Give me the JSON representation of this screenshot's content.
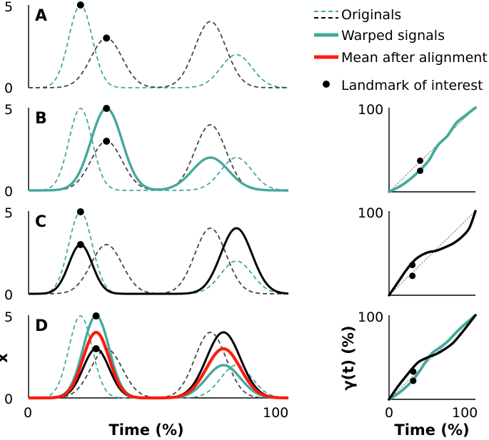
{
  "colors": {
    "teal": "#45a89d",
    "black": "#000000",
    "red": "#ff1a0d",
    "gray": "#444444",
    "ref": "#555555"
  },
  "legend": {
    "items": [
      {
        "label": "Originals",
        "kind": "dashed"
      },
      {
        "label": "Warped signals",
        "kind": "solid-teal"
      },
      {
        "label": "Mean after alignment",
        "kind": "solid-red"
      },
      {
        "label": "Landmark of interest",
        "kind": "dot"
      }
    ]
  },
  "chart_data": [
    {
      "panel": "A",
      "type": "line",
      "xlim": [
        0,
        100
      ],
      "ylim": [
        0,
        5
      ],
      "yticks": [
        "0",
        "5"
      ],
      "series": [
        {
          "name": "Original 1",
          "style": "dashed-teal",
          "peaks": [
            [
              20,
              5,
              4.5
            ],
            [
              80,
              2,
              6
            ]
          ]
        },
        {
          "name": "Original 2",
          "style": "dashed-black",
          "peaks": [
            [
              30,
              3,
              6
            ],
            [
              70,
              4,
              6
            ]
          ]
        }
      ],
      "landmarks": [
        [
          20,
          5
        ],
        [
          30,
          3
        ]
      ]
    },
    {
      "panel": "B",
      "type": "line",
      "xlim": [
        0,
        100
      ],
      "ylim": [
        0,
        5
      ],
      "yticks": [
        "0",
        "5"
      ],
      "series": [
        {
          "name": "Original 1",
          "style": "dashed-teal",
          "peaks": [
            [
              20,
              5,
              4.5
            ],
            [
              80,
              2,
              6
            ]
          ]
        },
        {
          "name": "Original 2",
          "style": "dashed-black",
          "peaks": [
            [
              30,
              3,
              6
            ],
            [
              70,
              4,
              6
            ]
          ]
        },
        {
          "name": "Warped signal 1",
          "style": "solid-teal",
          "peaks": [
            [
              30,
              5,
              6
            ],
            [
              70,
              2,
              7
            ]
          ]
        }
      ],
      "landmarks": [
        [
          30,
          5
        ],
        [
          30,
          3
        ]
      ]
    },
    {
      "panel": "C",
      "type": "line",
      "xlim": [
        0,
        100
      ],
      "ylim": [
        0,
        5
      ],
      "yticks": [
        "0",
        "5"
      ],
      "series": [
        {
          "name": "Original 1",
          "style": "dashed-teal",
          "peaks": [
            [
              20,
              5,
              4.5
            ],
            [
              80,
              2,
              6
            ]
          ]
        },
        {
          "name": "Original 2",
          "style": "dashed-black",
          "peaks": [
            [
              30,
              3,
              6
            ],
            [
              70,
              4,
              6
            ]
          ]
        },
        {
          "name": "Warped signal 2",
          "style": "solid-black",
          "peaks": [
            [
              20,
              3,
              4.5
            ],
            [
              80,
              4,
              6
            ]
          ]
        }
      ],
      "landmarks": [
        [
          20,
          5
        ],
        [
          20,
          3
        ]
      ]
    },
    {
      "panel": "D",
      "type": "line",
      "xlim": [
        0,
        100
      ],
      "ylim": [
        0,
        5
      ],
      "xticks": [
        "0",
        "100"
      ],
      "yticks": [
        "0",
        "5"
      ],
      "xlabel": "Time (%)",
      "ylabel": "x",
      "series": [
        {
          "name": "Original 1",
          "style": "dashed-teal",
          "peaks": [
            [
              20,
              5,
              4.5
            ],
            [
              80,
              2,
              6
            ]
          ]
        },
        {
          "name": "Original 2",
          "style": "dashed-black",
          "peaks": [
            [
              30,
              3,
              6
            ],
            [
              70,
              4,
              6
            ]
          ]
        },
        {
          "name": "Warped signal 1",
          "style": "solid-teal",
          "peaks": [
            [
              26,
              5,
              5
            ],
            [
              75,
              2,
              6.5
            ]
          ]
        },
        {
          "name": "Warped signal 2",
          "style": "solid-black",
          "peaks": [
            [
              26,
              3,
              5
            ],
            [
              75,
              4,
              6.5
            ]
          ]
        },
        {
          "name": "Mean after alignment",
          "style": "solid-red",
          "peaks": [
            [
              26,
              4,
              5
            ],
            [
              75,
              3,
              6.5
            ]
          ]
        }
      ],
      "landmarks": [
        [
          26,
          5
        ],
        [
          26,
          3
        ]
      ]
    },
    {
      "panel": "B-warp",
      "type": "line",
      "xlim": [
        0,
        100
      ],
      "ylim": [
        0,
        100
      ],
      "ytick_top": "100",
      "series": [
        {
          "name": "Warping function 1",
          "style": "solid-teal",
          "points": [
            [
              0,
              0
            ],
            [
              15,
              8
            ],
            [
              30,
              20
            ],
            [
              45,
              36
            ],
            [
              52,
              48
            ],
            [
              57,
              56
            ],
            [
              62,
              61
            ],
            [
              68,
              67
            ],
            [
              78,
              82
            ],
            [
              90,
              92
            ],
            [
              100,
              100
            ]
          ]
        }
      ],
      "landmarks": [
        [
          36,
          37
        ],
        [
          36,
          25
        ]
      ]
    },
    {
      "panel": "C-warp",
      "type": "line",
      "xlim": [
        0,
        100
      ],
      "ylim": [
        0,
        100
      ],
      "ytick_top": "100",
      "series": [
        {
          "name": "Warping function 2",
          "style": "solid-black",
          "points": [
            [
              0,
              0
            ],
            [
              10,
              15
            ],
            [
              20,
              30
            ],
            [
              28,
              40
            ],
            [
              35,
              46
            ],
            [
              45,
              51
            ],
            [
              55,
              53
            ],
            [
              65,
              57
            ],
            [
              75,
              62
            ],
            [
              85,
              70
            ],
            [
              93,
              80
            ],
            [
              100,
              100
            ]
          ]
        }
      ],
      "landmarks": [
        [
          27,
          36
        ],
        [
          27,
          23
        ]
      ]
    },
    {
      "panel": "D-warp",
      "type": "line",
      "xlim": [
        0,
        100
      ],
      "ylim": [
        0,
        100
      ],
      "xticks": [
        "0",
        "100"
      ],
      "ytick_top": "100",
      "xlabel": "Time (%)",
      "ylabel": "γ(t) (%)",
      "series": [
        {
          "name": "Warping function 1",
          "style": "solid-teal",
          "points": [
            [
              0,
              0
            ],
            [
              12,
              8
            ],
            [
              25,
              20
            ],
            [
              35,
              33
            ],
            [
              42,
              44
            ],
            [
              50,
              55
            ],
            [
              58,
              61
            ],
            [
              68,
              69
            ],
            [
              80,
              82
            ],
            [
              92,
              93
            ],
            [
              100,
              100
            ]
          ]
        },
        {
          "name": "Warping function 2",
          "style": "solid-black",
          "points": [
            [
              0,
              0
            ],
            [
              10,
              15
            ],
            [
              20,
              28
            ],
            [
              28,
              38
            ],
            [
              35,
              45
            ],
            [
              45,
              50
            ],
            [
              55,
              54
            ],
            [
              65,
              60
            ],
            [
              75,
              68
            ],
            [
              88,
              84
            ],
            [
              100,
              100
            ]
          ]
        }
      ],
      "landmarks": [
        [
          28,
          33
        ],
        [
          28,
          22
        ]
      ]
    }
  ]
}
